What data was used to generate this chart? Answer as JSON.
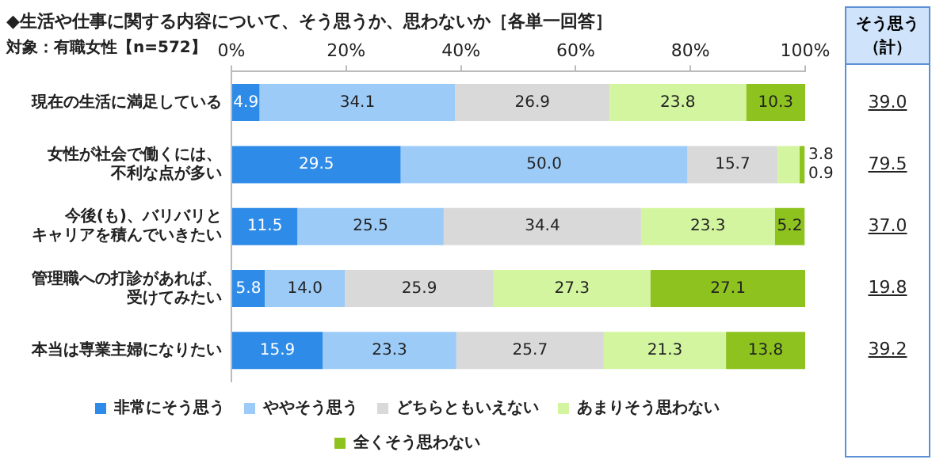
{
  "chart_data": {
    "type": "bar",
    "orientation": "horizontal",
    "stacked": true,
    "title": "◆生活や仕事に関する内容について、そう思うか、思わないか［各単一回答］",
    "subtitle": "対象：有職女性【n=572】",
    "categories": [
      "現在の生活に満足している",
      "女性が社会で働くには、不利な点が多い",
      "今後(も)、バリバリとキャリアを積んでいきたい",
      "管理職への打診があれば、受けてみたい",
      "本当は専業主婦になりたい"
    ],
    "series": [
      {
        "name": "非常にそう思う",
        "color": "#2e8be8",
        "values": [
          4.9,
          29.5,
          11.5,
          5.8,
          15.9
        ],
        "value_labels": [
          "4.9",
          "29.5",
          "11.5",
          "5.8",
          "15.9"
        ]
      },
      {
        "name": "ややそう思う",
        "color": "#9dcbf7",
        "values": [
          34.1,
          50.0,
          25.5,
          14.0,
          23.3
        ],
        "value_labels": [
          "34.1",
          "50.0",
          "25.5",
          "14.0",
          "23.3"
        ]
      },
      {
        "name": "どちらともいえない",
        "color": "#d9d9d9",
        "values": [
          26.9,
          15.7,
          34.4,
          25.9,
          25.7
        ],
        "value_labels": [
          "26.9",
          "15.7",
          "34.4",
          "25.9",
          "25.7"
        ]
      },
      {
        "name": "あまりそう思わない",
        "color": "#d4f5a0",
        "values": [
          23.8,
          3.8,
          23.3,
          27.3,
          21.3
        ],
        "value_labels": [
          "23.8",
          "3.8",
          "23.3",
          "27.3",
          "21.3"
        ]
      },
      {
        "name": "全くそう思わない",
        "color": "#8dc21f",
        "values": [
          10.3,
          0.9,
          5.2,
          27.1,
          13.8
        ],
        "value_labels": [
          "10.3",
          "0.9",
          "5.2",
          "27.1",
          "13.8"
        ]
      }
    ],
    "xlim": [
      0,
      100
    ],
    "xticks": [
      {
        "value": 0,
        "label": "0%"
      },
      {
        "value": 20,
        "label": "20%"
      },
      {
        "value": 40,
        "label": "40%"
      },
      {
        "value": 60,
        "label": "60%"
      },
      {
        "value": 80,
        "label": "80%"
      },
      {
        "value": 100,
        "label": "100%"
      }
    ],
    "legend": "bottom",
    "annotations": [
      "そう思う（計）",
      "39.0",
      "79.5",
      "37.0",
      "19.8",
      "39.2"
    ]
  }
}
